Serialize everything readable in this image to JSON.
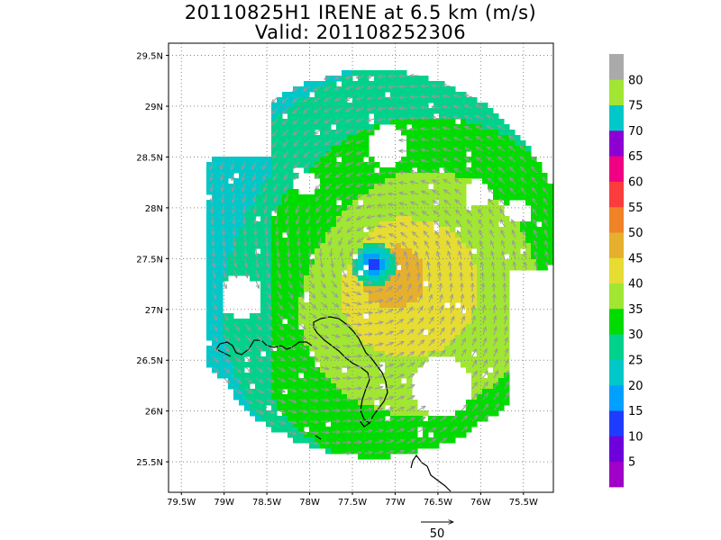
{
  "title": {
    "line1": "20110825H1 IRENE at 6.5 km (m/s)",
    "line2": "Valid: 201108252306"
  },
  "axes": {
    "lat_labels": [
      "29.5N",
      "29N",
      "28.5N",
      "28N",
      "27.5N",
      "27N",
      "26.5N",
      "26N",
      "25.5N"
    ],
    "lat_values": [
      29.5,
      29.0,
      28.5,
      28.0,
      27.5,
      27.0,
      26.5,
      26.0,
      25.5
    ],
    "lon_labels": [
      "79.5W",
      "79W",
      "78.5W",
      "78W",
      "77.5W",
      "77W",
      "76.5W",
      "76W",
      "75.5W"
    ],
    "lon_values": [
      -79.5,
      -79.0,
      -78.5,
      -78.0,
      -77.5,
      -77.0,
      -76.5,
      -76.0,
      -75.5
    ],
    "lon_range": [
      -79.65,
      -75.15
    ],
    "lat_range": [
      25.2,
      29.62
    ],
    "grid": "dotted"
  },
  "storm": {
    "name": "IRENE",
    "center_lon": -77.25,
    "center_lat": 27.45
  },
  "colorbar": {
    "labels": [
      "5",
      "10",
      "15",
      "20",
      "25",
      "30",
      "35",
      "40",
      "45",
      "50",
      "55",
      "60",
      "65",
      "70",
      "75",
      "80"
    ],
    "colors": [
      "#a000c8",
      "#6e00dc",
      "#1e3cff",
      "#00a0ff",
      "#00c8c8",
      "#00d28c",
      "#00dc00",
      "#a0e632",
      "#e6dc32",
      "#e6af2d",
      "#f08228",
      "#fa3c3c",
      "#f00082",
      "#8c00d4",
      "#00c8c8",
      "#a0e632",
      "#aaaaaa"
    ]
  },
  "vector_reference": {
    "label": "50"
  }
}
